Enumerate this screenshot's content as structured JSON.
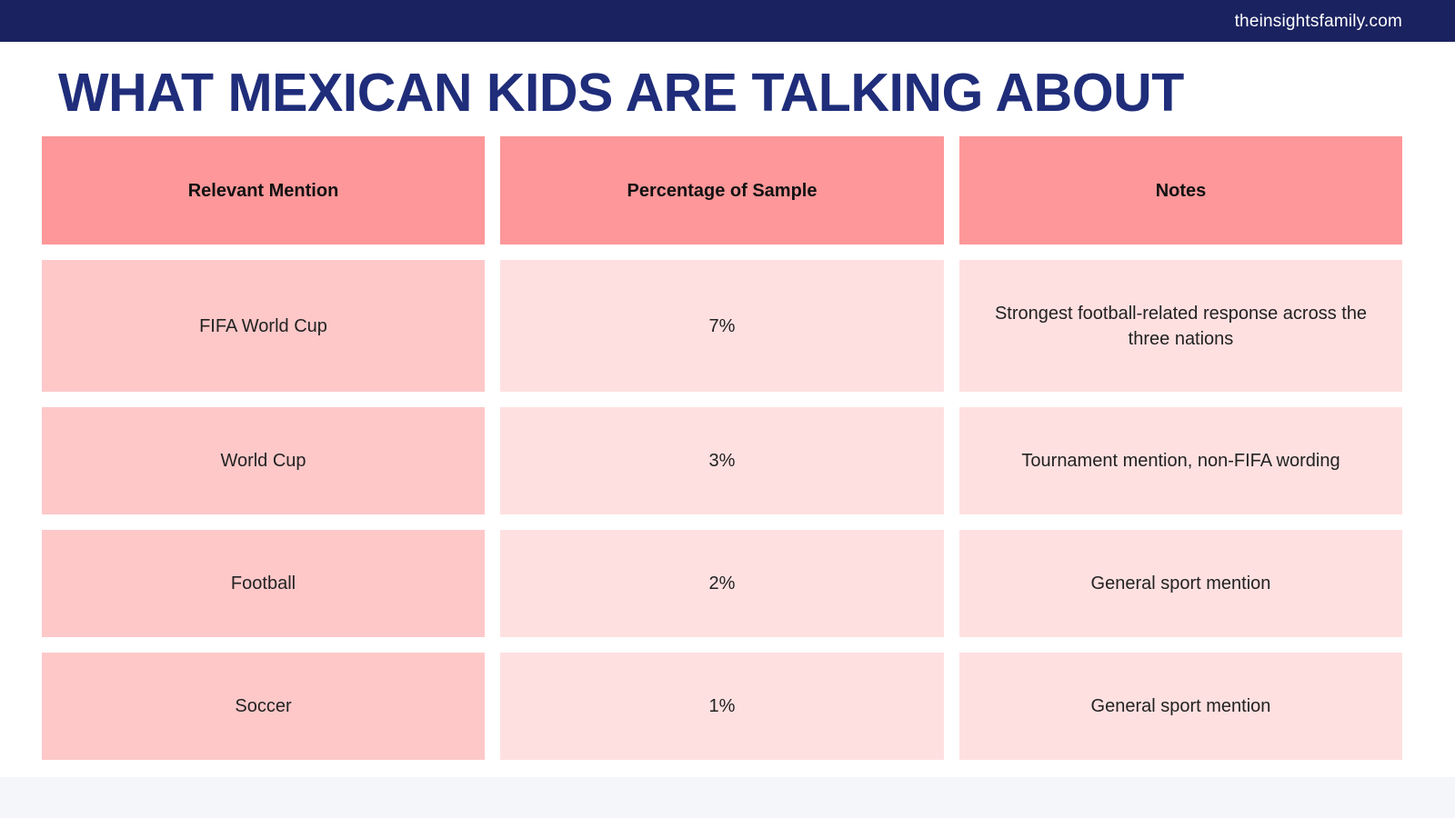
{
  "header": {
    "site_url": "theinsightsfamily.com"
  },
  "slide": {
    "title": "WHAT MEXICAN KIDS ARE TALKING ABOUT"
  },
  "table": {
    "headers": [
      "Relevant Mention",
      "Percentage of Sample",
      "Notes"
    ],
    "rows": [
      [
        "FIFA World Cup",
        "7%",
        "Strongest football-related response across the three nations"
      ],
      [
        "World Cup",
        "3%",
        "Tournament mention, non-FIFA wording"
      ],
      [
        "Football",
        "2%",
        "General sport mention"
      ],
      [
        "Soccer",
        "1%",
        "General sport mention"
      ]
    ]
  },
  "colors": {
    "topbar": "#1b2260",
    "title": "#1f2d7a",
    "header_cell": "#fe9799",
    "first_column_cell": "#fec8c9",
    "other_cells": "#ffe0e1"
  }
}
